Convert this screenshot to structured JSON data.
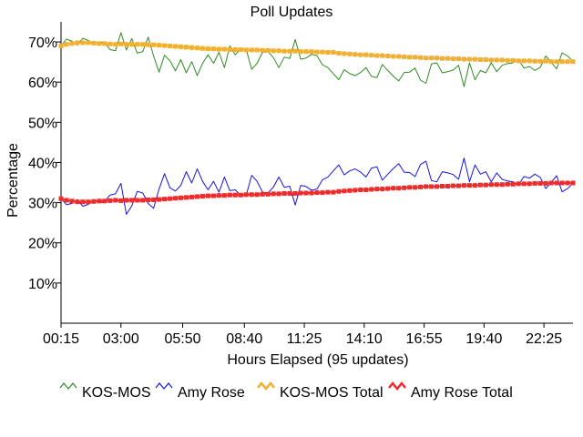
{
  "chart_data": {
    "type": "line",
    "title": "Poll Updates",
    "xlabel": "Hours Elapsed (95 updates)",
    "ylabel": "Percentage",
    "ylim": [
      0,
      75
    ],
    "yticks": [
      10,
      20,
      30,
      40,
      50,
      60,
      70
    ],
    "ytick_labels": [
      "10%",
      "20%",
      "30%",
      "40%",
      "50%",
      "60%",
      "70%"
    ],
    "xlim_hours": [
      0.25,
      23.75
    ],
    "xticks_hours": [
      0.25,
      3.0,
      5.8333,
      8.6667,
      11.4167,
      14.1667,
      16.9167,
      19.6667,
      22.4167
    ],
    "xtick_labels": [
      "00:15",
      "03:00",
      "05:50",
      "08:40",
      "11:25",
      "14:10",
      "16:55",
      "19:40",
      "22:25"
    ],
    "grid": false,
    "legend_position": "bottom",
    "series": [
      {
        "name": "KOS-MOS",
        "color": "#2e8b22",
        "marker": "none",
        "values": [
          69.0,
          70.7,
          70.2,
          69.2,
          70.9,
          70.4,
          69.4,
          70.0,
          69.8,
          68.1,
          67.8,
          72.3,
          68.0,
          70.8,
          67.2,
          67.6,
          71.2,
          66.5,
          62.5,
          66.7,
          65.3,
          62.8,
          65.6,
          62.3,
          65.1,
          61.6,
          64.7,
          66.8,
          64.7,
          67.4,
          63.6,
          69.0,
          66.8,
          68.3,
          68.1,
          63.2,
          64.7,
          67.4,
          67.6,
          66.1,
          63.6,
          66.2,
          65.9,
          70.6,
          65.7,
          66.0,
          66.9,
          66.6,
          64.3,
          63.6,
          62.1,
          60.6,
          63.1,
          62.1,
          61.6,
          62.4,
          63.6,
          61.4,
          61.1,
          64.4,
          62.9,
          61.5,
          60.3,
          62.4,
          62.5,
          63.5,
          60.5,
          59.7,
          64.5,
          64.8,
          62.3,
          62.6,
          63.0,
          64.2,
          58.9,
          64.8,
          60.6,
          62.9,
          62.3,
          64.8,
          62.6,
          64.2,
          64.6,
          64.8,
          65.6,
          63.5,
          63.9,
          62.9,
          63.7,
          66.5,
          64.9,
          63.3,
          67.3,
          66.5,
          65.2
        ]
      },
      {
        "name": "Amy Rose",
        "color": "#1414e6",
        "marker": "none",
        "values": [
          31.0,
          29.5,
          29.8,
          30.7,
          29.1,
          29.6,
          30.6,
          30.0,
          30.2,
          31.9,
          32.2,
          34.8,
          27.1,
          29.2,
          32.8,
          32.4,
          29.8,
          28.6,
          33.4,
          37.2,
          33.7,
          32.9,
          34.3,
          37.7,
          34.9,
          38.4,
          35.3,
          33.2,
          35.3,
          32.6,
          36.4,
          33.0,
          33.2,
          31.7,
          31.9,
          36.8,
          35.3,
          32.6,
          32.4,
          33.9,
          36.4,
          33.8,
          34.1,
          29.4,
          34.3,
          34.0,
          33.1,
          33.4,
          35.7,
          36.4,
          37.9,
          39.4,
          36.9,
          37.9,
          38.4,
          37.6,
          36.4,
          38.6,
          38.9,
          35.6,
          37.1,
          38.5,
          39.7,
          37.6,
          37.5,
          36.5,
          39.5,
          40.3,
          35.5,
          35.2,
          37.7,
          37.4,
          37.0,
          35.8,
          41.1,
          35.2,
          39.4,
          37.1,
          37.7,
          35.2,
          37.4,
          35.8,
          35.4,
          35.2,
          34.4,
          36.5,
          36.1,
          37.1,
          36.3,
          33.5,
          35.1,
          36.7,
          32.7,
          33.5,
          34.8
        ]
      },
      {
        "name": "KOS-MOS Total",
        "color": "#f0b030",
        "marker": "square",
        "values": [
          69.0,
          69.4,
          69.6,
          69.8,
          69.8,
          69.8,
          69.7,
          69.6,
          69.6,
          69.5,
          69.4,
          69.5,
          69.4,
          69.4,
          69.4,
          69.4,
          69.3,
          69.3,
          69.2,
          69.1,
          69.0,
          68.9,
          68.8,
          68.7,
          68.6,
          68.5,
          68.4,
          68.3,
          68.3,
          68.2,
          68.2,
          68.1,
          68.1,
          68.1,
          68.0,
          68.0,
          68.0,
          67.9,
          67.9,
          67.8,
          67.8,
          67.7,
          67.7,
          67.7,
          67.6,
          67.6,
          67.6,
          67.5,
          67.5,
          67.4,
          67.4,
          67.2,
          67.1,
          67.0,
          66.9,
          66.8,
          66.8,
          66.7,
          66.6,
          66.6,
          66.5,
          66.4,
          66.4,
          66.3,
          66.2,
          66.2,
          66.1,
          66.0,
          66.0,
          66.0,
          65.9,
          65.9,
          65.8,
          65.8,
          65.7,
          65.7,
          65.7,
          65.6,
          65.6,
          65.5,
          65.5,
          65.5,
          65.4,
          65.4,
          65.3,
          65.3,
          65.3,
          65.2,
          65.2,
          65.2,
          65.1,
          65.1,
          65.1,
          65.1,
          65.1
        ]
      },
      {
        "name": "Amy Rose Total",
        "color": "#ee2c2c",
        "marker": "square",
        "values": [
          31.0,
          30.6,
          30.4,
          30.2,
          30.2,
          30.2,
          30.3,
          30.4,
          30.4,
          30.5,
          30.6,
          30.5,
          30.6,
          30.6,
          30.6,
          30.6,
          30.7,
          30.7,
          30.8,
          30.9,
          31.0,
          31.1,
          31.2,
          31.3,
          31.4,
          31.5,
          31.6,
          31.7,
          31.7,
          31.8,
          31.8,
          31.9,
          31.9,
          31.9,
          32.0,
          32.0,
          32.0,
          32.1,
          32.1,
          32.2,
          32.2,
          32.3,
          32.3,
          32.3,
          32.4,
          32.4,
          32.4,
          32.5,
          32.5,
          32.6,
          32.6,
          32.8,
          32.9,
          33.0,
          33.1,
          33.2,
          33.2,
          33.3,
          33.4,
          33.4,
          33.5,
          33.6,
          33.6,
          33.7,
          33.8,
          33.8,
          33.9,
          34.0,
          34.0,
          34.0,
          34.1,
          34.1,
          34.2,
          34.2,
          34.3,
          34.3,
          34.3,
          34.4,
          34.4,
          34.5,
          34.5,
          34.5,
          34.6,
          34.6,
          34.7,
          34.7,
          34.7,
          34.8,
          34.8,
          34.8,
          34.9,
          34.9,
          34.9,
          34.9,
          34.9
        ]
      }
    ]
  }
}
